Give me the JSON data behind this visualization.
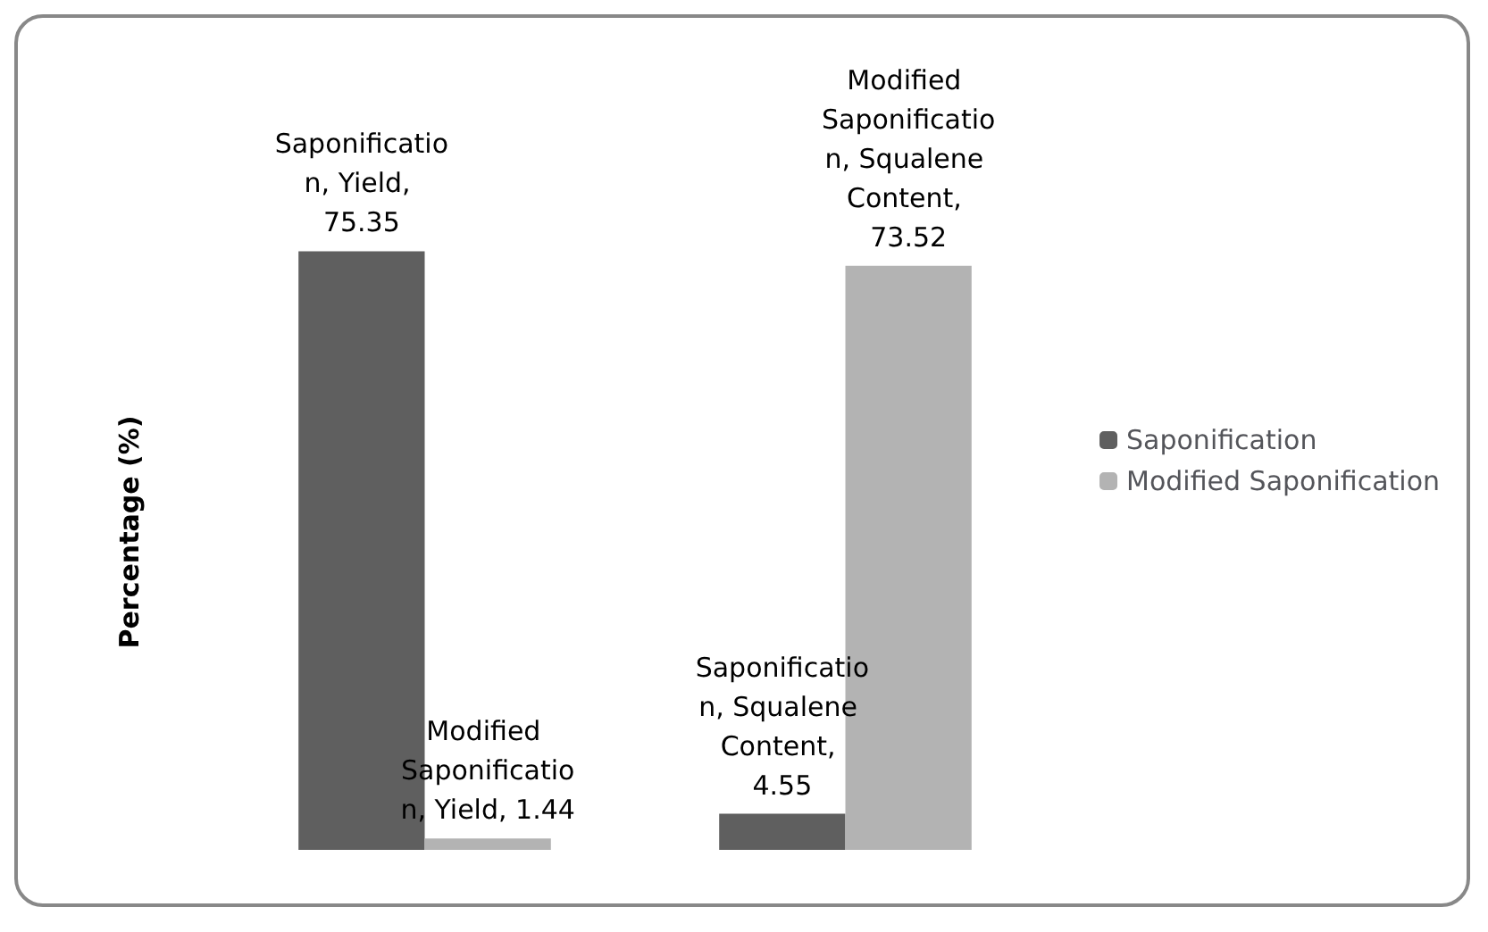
{
  "chart_data": {
    "type": "bar",
    "ylabel": "Percentage (%)",
    "categories": [
      null,
      null
    ],
    "series": [
      {
        "name": "Saponification",
        "color": "#5f5f5f",
        "values": [
          75.35,
          4.55
        ],
        "value_labels": [
          "Saponification, Yield, 75.35",
          "Saponification, Squalene Content, 4.55"
        ]
      },
      {
        "name": "Modified Saponification",
        "color": "#b3b3b3",
        "values": [
          1.44,
          73.52
        ],
        "value_labels": [
          "Modified Saponification, Yield, 1.44",
          "Modified Saponification, Squalene Content, 73.52"
        ]
      }
    ],
    "legend": "right",
    "grid": false,
    "tick_labels": false
  }
}
